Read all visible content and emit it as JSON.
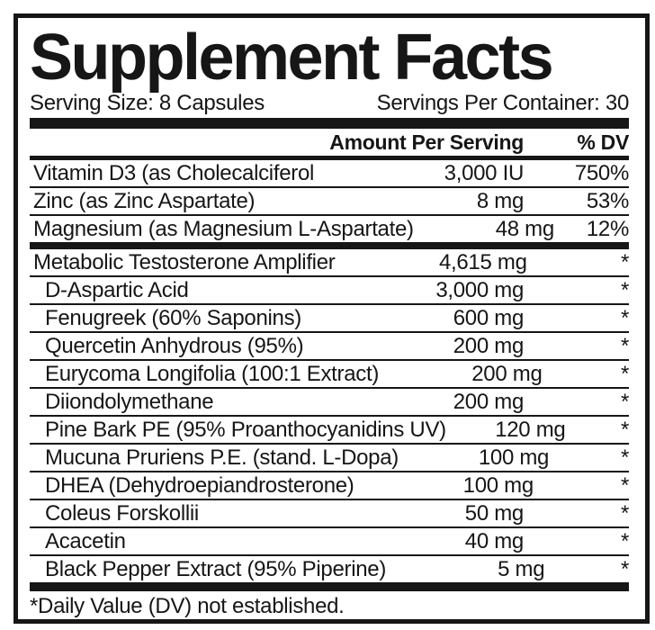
{
  "label": {
    "title": "Supplement Facts",
    "serving_size": "Serving Size: 8 Capsules",
    "servings_per_container": "Servings Per Container: 30",
    "columns": {
      "amount_header": "Amount Per Serving",
      "dv_header": "% DV"
    },
    "footnote": "*Daily Value (DV) not established.",
    "colors": {
      "ink": "#161616",
      "background": "#ffffff"
    }
  },
  "sections": [
    {
      "name": "vitamins-minerals",
      "rows": [
        {
          "name": "Vitamin D3 (as Cholecalciferol",
          "amount": "3,000 IU",
          "dv": "750%",
          "indent": false
        },
        {
          "name": "Zinc (as Zinc Aspartate)",
          "amount": "8 mg",
          "dv": "53%",
          "indent": false
        },
        {
          "name": "Magnesium (as Magnesium L-Aspartate)",
          "amount": "48 mg",
          "dv": "12%",
          "indent": false
        }
      ]
    },
    {
      "name": "proprietary-blend",
      "rows": [
        {
          "name": "Metabolic Testosterone Amplifier",
          "amount": "4,615 mg",
          "dv": "*",
          "indent": false
        },
        {
          "name": "D-Aspartic Acid",
          "amount": "3,000 mg",
          "dv": "*",
          "indent": true
        },
        {
          "name": "Fenugreek (60% Saponins)",
          "amount": "600 mg",
          "dv": "*",
          "indent": true
        },
        {
          "name": "Quercetin Anhydrous (95%)",
          "amount": "200 mg",
          "dv": "*",
          "indent": true
        },
        {
          "name": "Eurycoma Longifolia (100:1 Extract)",
          "amount": "200 mg",
          "dv": "*",
          "indent": true
        },
        {
          "name": "Diiondolymethane",
          "amount": "200 mg",
          "dv": "*",
          "indent": true
        },
        {
          "name": "Pine Bark PE (95% Proanthocyanidins UV)",
          "amount": "120 mg",
          "dv": "*",
          "indent": true
        },
        {
          "name": "Mucuna Pruriens P.E. (stand. L-Dopa)",
          "amount": "100 mg",
          "dv": "*",
          "indent": true
        },
        {
          "name": "DHEA (Dehydroepiandrosterone)",
          "amount": "100 mg",
          "dv": "*",
          "indent": true
        },
        {
          "name": "Coleus Forskollii",
          "amount": "50 mg",
          "dv": "*",
          "indent": true
        },
        {
          "name": "Acacetin",
          "amount": "40 mg",
          "dv": "*",
          "indent": true
        },
        {
          "name": "Black Pepper Extract (95% Piperine)",
          "amount": "5 mg",
          "dv": "*",
          "indent": true
        }
      ]
    }
  ]
}
